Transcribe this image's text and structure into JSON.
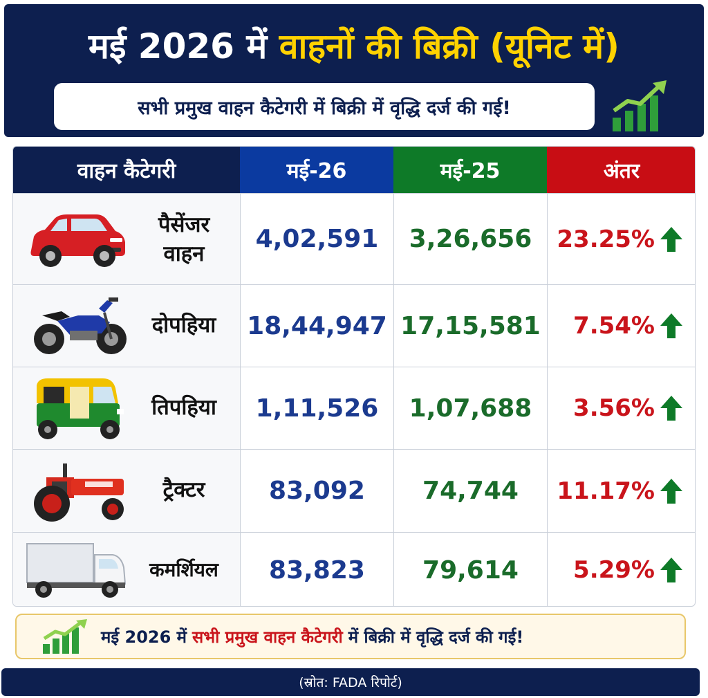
{
  "banner": {
    "title_white": "मई 2026 में",
    "title_yellow": "वाहनों की बिक्री (यूनिट में)",
    "subtitle": "सभी प्रमुख वाहन कैटेगरी में बिक्री में वृद्धि दर्ज की गई!"
  },
  "table": {
    "headers": [
      "वाहन कैटेगरी",
      "मई-26",
      "मई-25",
      "अंतर"
    ],
    "rows": [
      {
        "category_line1": "पैसेंजर",
        "category_line2": "वाहन",
        "may26": "4,02,591",
        "may25": "3,26,656",
        "change": "23.25%",
        "icon": "car-icon"
      },
      {
        "category_line1": "दोपहिया",
        "category_line2": "",
        "may26": "18,44,947",
        "may25": "17,15,581",
        "change": "7.54%",
        "icon": "motorcycle-icon"
      },
      {
        "category_line1": "तिपहिया",
        "category_line2": "",
        "may26": "1,11,526",
        "may25": "1,07,688",
        "change": "3.56%",
        "icon": "auto-rickshaw-icon"
      },
      {
        "category_line1": "ट्रैक्टर",
        "category_line2": "",
        "may26": "83,092",
        "may25": "74,744",
        "change": "11.17%",
        "icon": "tractor-icon"
      },
      {
        "category_line1": "कमर्शियल",
        "category_line2": "",
        "may26": "83,823",
        "may25": "79,614",
        "change": "5.29%",
        "icon": "truck-icon"
      }
    ]
  },
  "footer": {
    "prefix": "मई 2026 में",
    "highlight": "सभी प्रमुख वाहन कैटेगरी",
    "suffix": "में बिक्री में वृद्धि दर्ज की गई!"
  },
  "source": "(स्रोत: FADA रिपोर्ट)",
  "colors": {
    "navy": "#0d1f4f",
    "yellow": "#ffd200",
    "blue": "#1b3a8f",
    "green": "#1a6b2a",
    "red": "#c9141b",
    "arrow_green": "#0e7a28"
  }
}
